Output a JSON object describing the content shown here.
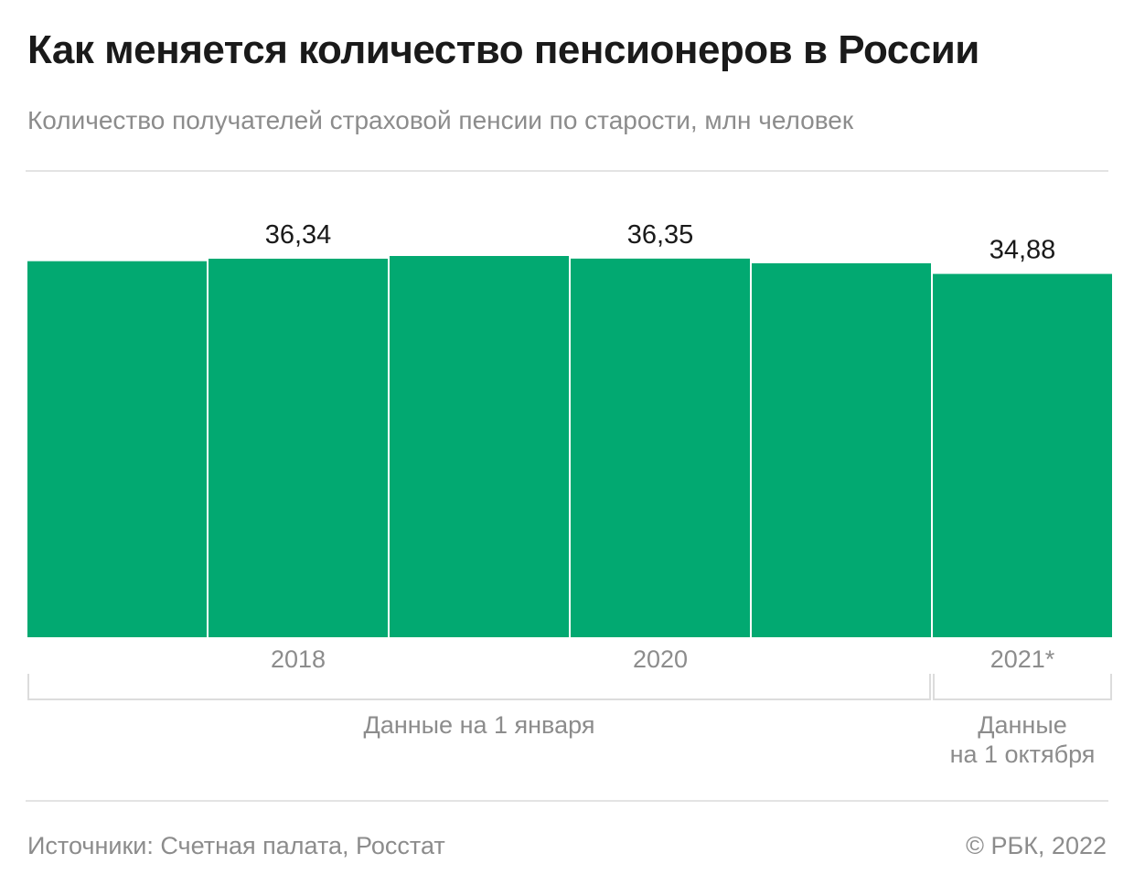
{
  "header": {
    "title": "Как меняется количество пенсионеров в России",
    "subtitle": "Количество получателей страховой пенсии по старости, млн человек"
  },
  "chart_data": {
    "type": "bar",
    "color": "#02A971",
    "categories": [
      "",
      "2018",
      "",
      "2020",
      "",
      "2021*"
    ],
    "values": [
      36.1,
      36.34,
      36.6,
      36.35,
      35.9,
      34.88
    ],
    "data_labels": [
      "",
      "36,34",
      "",
      "36,35",
      "",
      "34,88"
    ],
    "groups": [
      {
        "label": "Данные на 1 января",
        "from": 0,
        "to": 4
      },
      {
        "label_lines": [
          "Данные",
          "на 1 октября"
        ],
        "from": 5,
        "to": 5
      }
    ],
    "ylim": [
      0,
      36.6
    ],
    "grid": false
  },
  "footer": {
    "source": "Источники: Счетная палата, Росстат",
    "copyright": "© РБК, 2022"
  }
}
